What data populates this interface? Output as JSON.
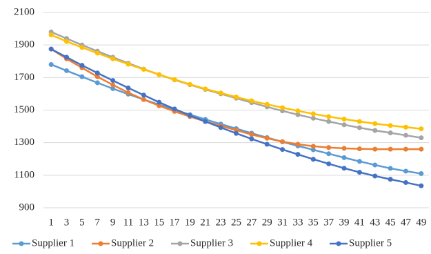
{
  "chart_data": {
    "type": "line",
    "categories": [
      1,
      3,
      5,
      7,
      9,
      11,
      13,
      15,
      17,
      19,
      21,
      23,
      25,
      27,
      29,
      31,
      33,
      35,
      37,
      39,
      41,
      43,
      45,
      47,
      49
    ],
    "series": [
      {
        "name": "Supplier 1",
        "color": "#5b9bd5",
        "values": [
          1780,
          1742,
          1705,
          1668,
          1632,
          1598,
          1565,
          1533,
          1502,
          1472,
          1443,
          1414,
          1386,
          1358,
          1331,
          1305,
          1280,
          1256,
          1232,
          1208,
          1185,
          1163,
          1142,
          1125,
          1110
        ]
      },
      {
        "name": "Supplier 2",
        "color": "#ed7d31",
        "values": [
          1875,
          1815,
          1760,
          1705,
          1655,
          1607,
          1565,
          1527,
          1492,
          1460,
          1430,
          1403,
          1377,
          1350,
          1327,
          1306,
          1290,
          1278,
          1270,
          1265,
          1262,
          1260,
          1260,
          1260,
          1260
        ]
      },
      {
        "name": "Supplier 3",
        "color": "#a5a5a5",
        "values": [
          1980,
          1940,
          1900,
          1862,
          1825,
          1788,
          1752,
          1718,
          1686,
          1656,
          1627,
          1600,
          1573,
          1546,
          1520,
          1495,
          1472,
          1450,
          1430,
          1410,
          1392,
          1375,
          1360,
          1345,
          1330
        ]
      },
      {
        "name": "Supplier 4",
        "color": "#ffc000",
        "values": [
          1962,
          1922,
          1885,
          1850,
          1815,
          1782,
          1750,
          1718,
          1688,
          1658,
          1630,
          1605,
          1580,
          1557,
          1535,
          1515,
          1495,
          1477,
          1460,
          1445,
          1430,
          1417,
          1405,
          1395,
          1385
        ]
      },
      {
        "name": "Supplier 5",
        "color": "#4472c4",
        "values": [
          1875,
          1825,
          1775,
          1728,
          1682,
          1636,
          1592,
          1548,
          1507,
          1467,
          1430,
          1393,
          1357,
          1323,
          1290,
          1258,
          1228,
          1198,
          1170,
          1143,
          1118,
          1095,
          1075,
          1055,
          1035
        ]
      }
    ],
    "ylim": [
      900,
      2100
    ],
    "yticks": [
      900,
      1100,
      1300,
      1500,
      1700,
      1900,
      2100
    ],
    "grid": true,
    "legend": "bottom"
  }
}
